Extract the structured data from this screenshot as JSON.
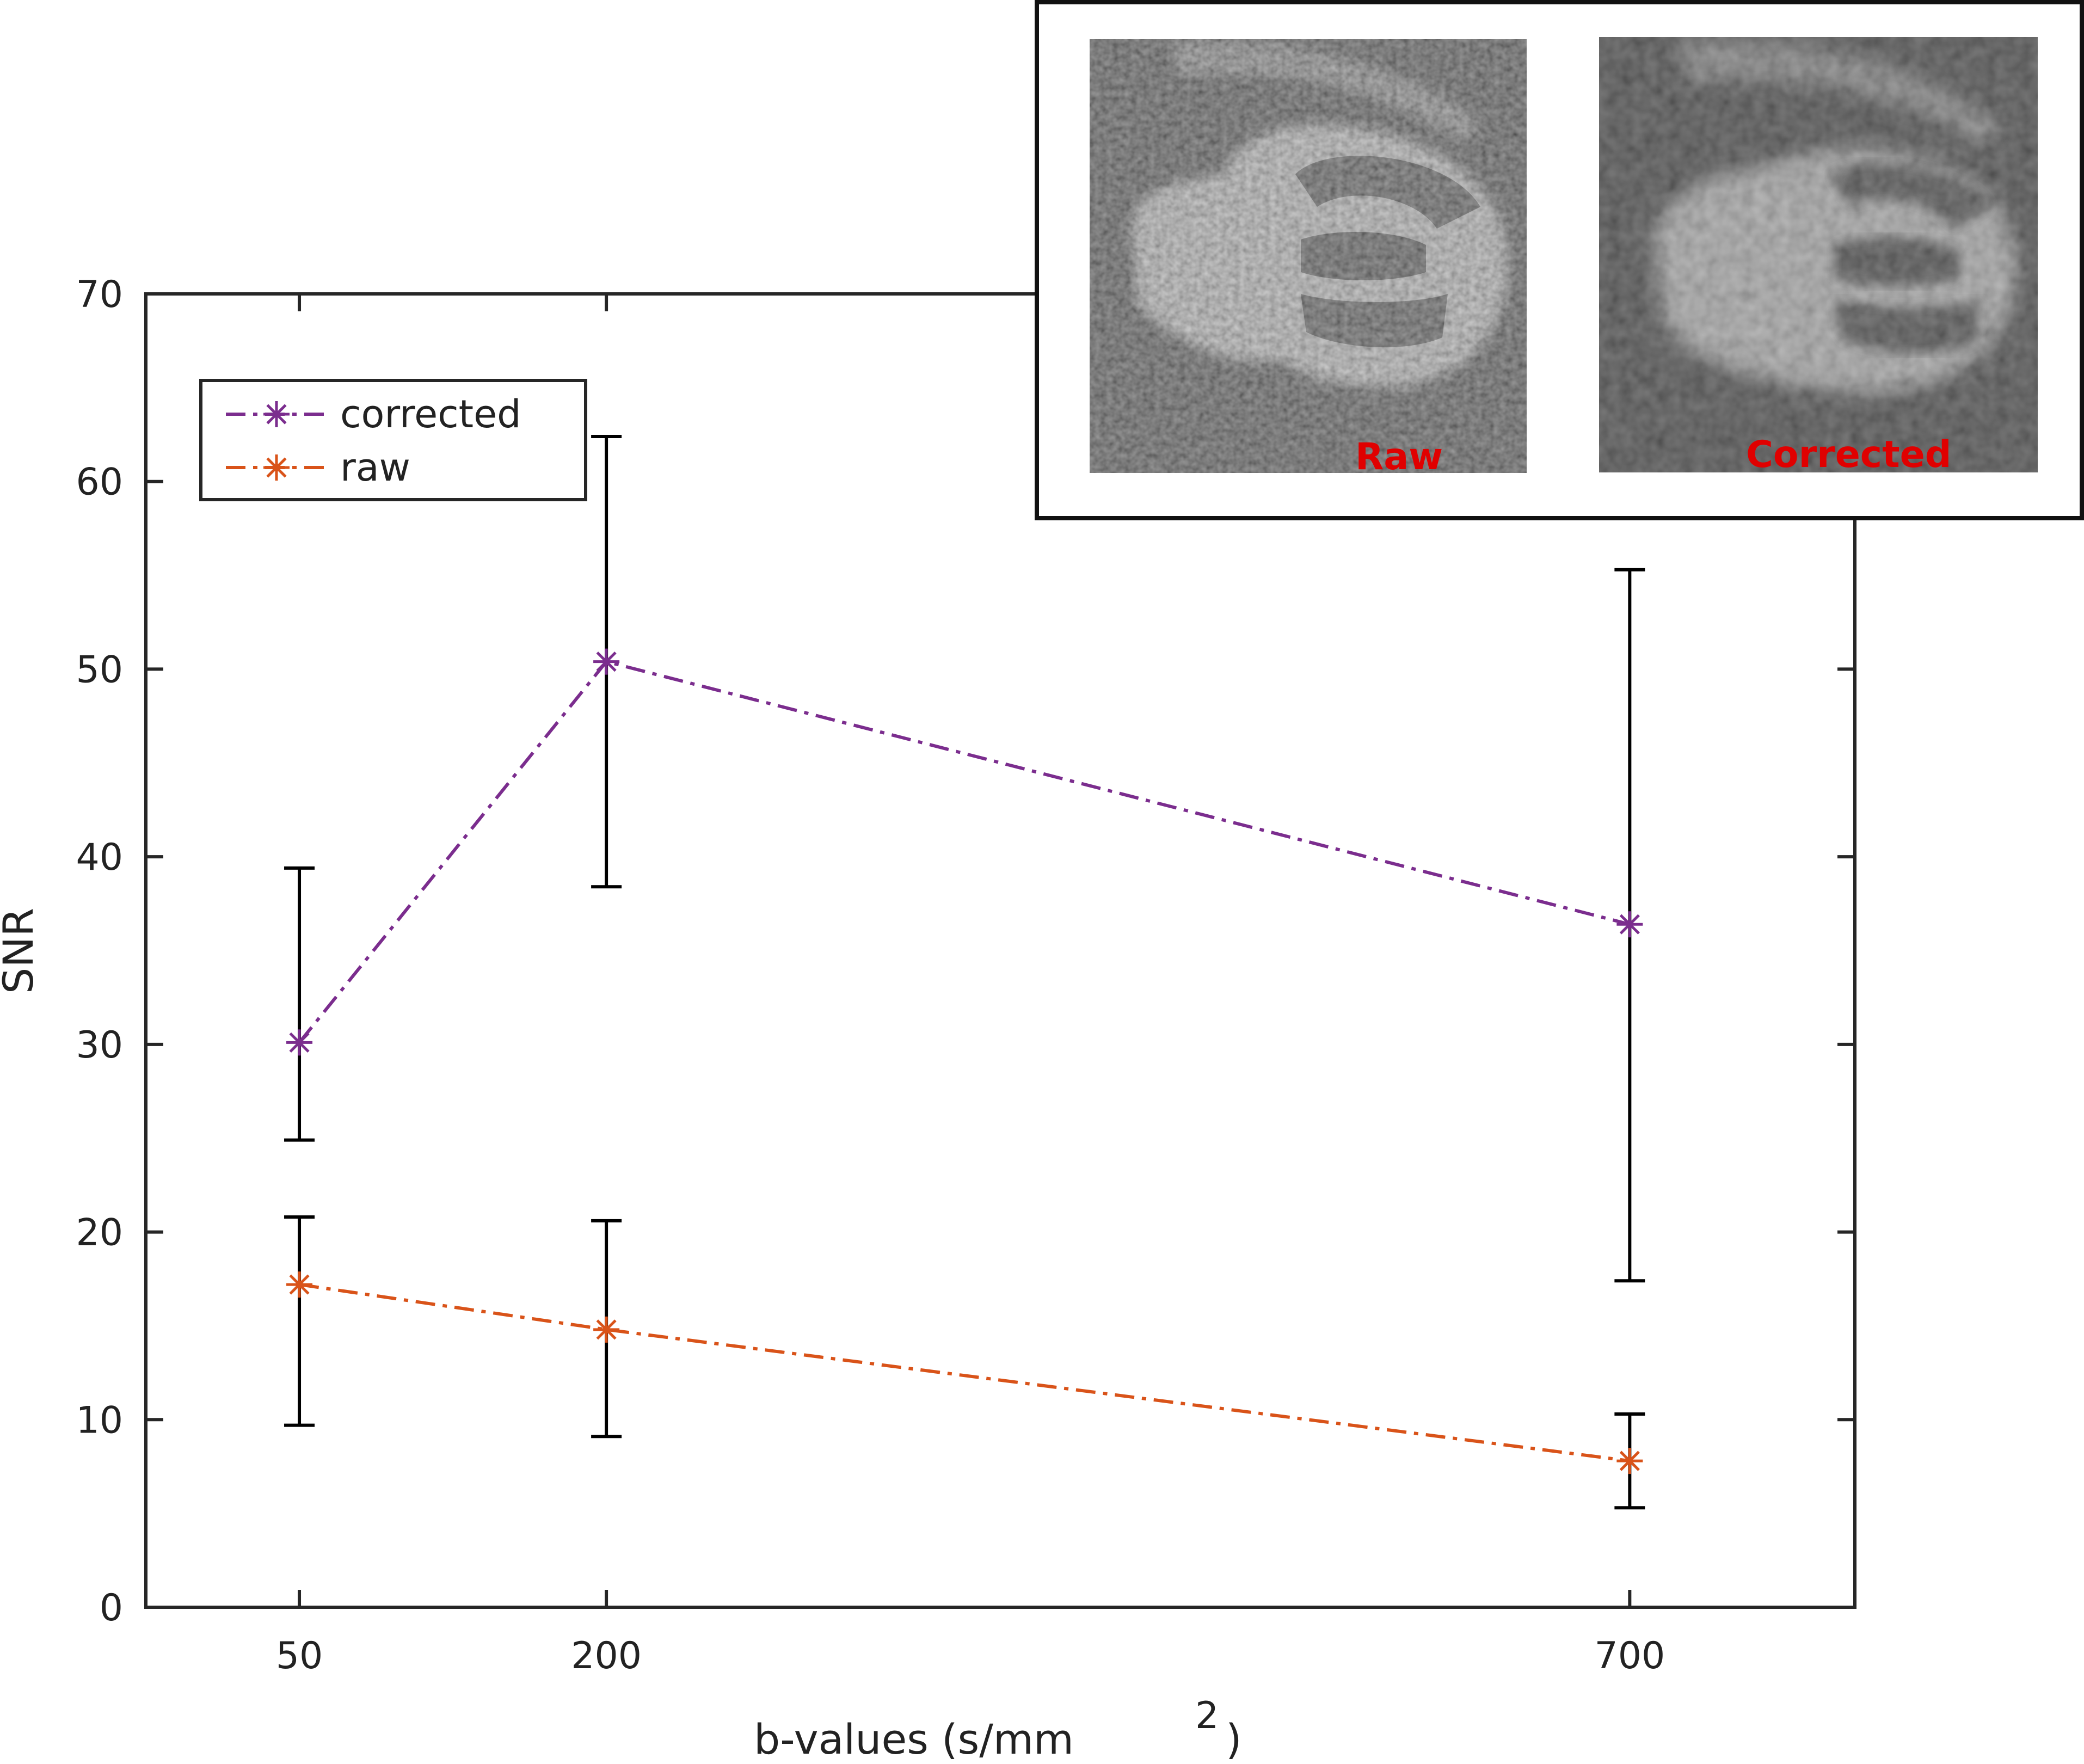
{
  "chart_data": {
    "type": "line",
    "x_tick_labels": [
      "50",
      "200",
      "700"
    ],
    "x": [
      50,
      200,
      700
    ],
    "xlim": [
      -25,
      810
    ],
    "ylim": [
      0,
      70
    ],
    "y_ticks": [
      0,
      10,
      20,
      30,
      40,
      50,
      60,
      70
    ],
    "xlabel": "b-values (s/mm",
    "xlabel_superscript": "2",
    "xlabel_suffix": ")",
    "ylabel": "SNR",
    "title": "",
    "grid": false,
    "legend_position": "top-left",
    "series": [
      {
        "name": "corrected",
        "color": "#7b2d8e",
        "line_style": "dash-dot",
        "marker": "asterisk",
        "values": [
          30.1,
          50.4,
          36.4
        ],
        "error_low": [
          24.9,
          38.4,
          17.4
        ],
        "error_high": [
          39.4,
          62.4,
          55.3
        ]
      },
      {
        "name": "raw",
        "color": "#d95319",
        "line_style": "dash-dot",
        "marker": "asterisk",
        "values": [
          17.2,
          14.8,
          7.8
        ],
        "error_low": [
          9.7,
          9.1,
          5.3
        ],
        "error_high": [
          20.8,
          20.6,
          10.3
        ]
      }
    ],
    "inset": {
      "panels": [
        {
          "label": "Raw",
          "label_color": "#e00000"
        },
        {
          "label": "Corrected",
          "label_color": "#e00000"
        }
      ]
    }
  }
}
